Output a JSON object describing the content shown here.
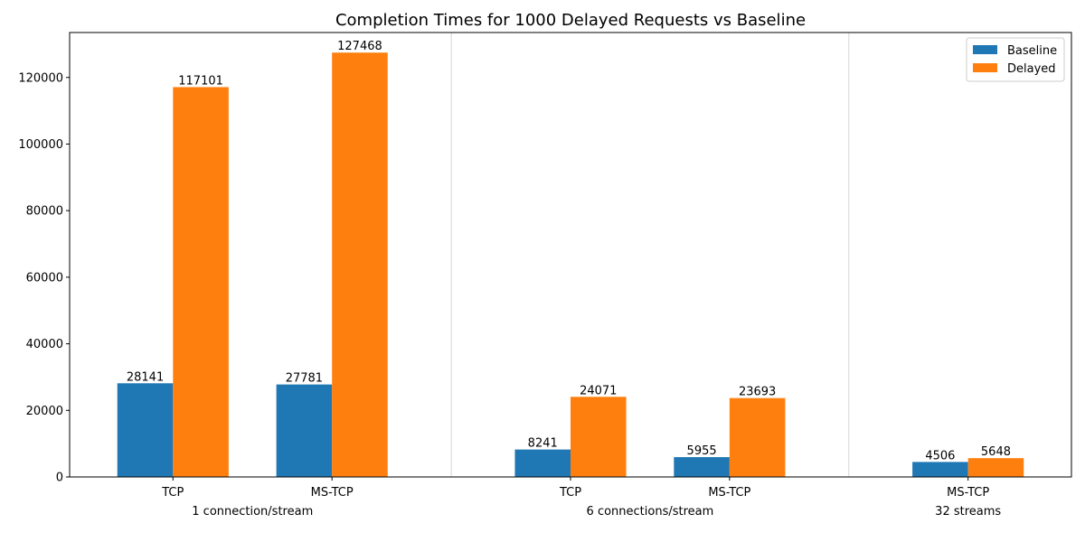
{
  "chart_data": {
    "type": "bar",
    "title": "Completion Times for 1000 Delayed Requests vs Baseline",
    "xlabel": "",
    "ylabel": "",
    "ylim": [
      0,
      133500
    ],
    "yticks": [
      0,
      20000,
      40000,
      60000,
      80000,
      100000,
      120000
    ],
    "legend_position": "top-right",
    "grid": false,
    "categories": [
      "TCP",
      "MS-TCP",
      "TCP",
      "MS-TCP",
      "MS-TCP"
    ],
    "groups": [
      {
        "label": "1 connection/stream",
        "categories": [
          0,
          1
        ]
      },
      {
        "label": "6 connections/stream",
        "categories": [
          2,
          3
        ]
      },
      {
        "label": "32 streams",
        "categories": [
          4
        ]
      }
    ],
    "series": [
      {
        "name": "Baseline",
        "color": "#1f77b4",
        "values": [
          28141,
          27781,
          8241,
          5955,
          4506
        ]
      },
      {
        "name": "Delayed",
        "color": "#ff7f0e",
        "values": [
          117101,
          127468,
          24071,
          23693,
          5648
        ]
      }
    ]
  }
}
